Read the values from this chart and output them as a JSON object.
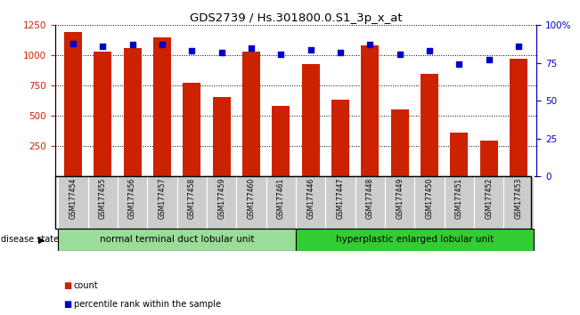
{
  "title": "GDS2739 / Hs.301800.0.S1_3p_x_at",
  "samples": [
    "GSM177454",
    "GSM177455",
    "GSM177456",
    "GSM177457",
    "GSM177458",
    "GSM177459",
    "GSM177460",
    "GSM177461",
    "GSM177446",
    "GSM177447",
    "GSM177448",
    "GSM177449",
    "GSM177450",
    "GSM177451",
    "GSM177452",
    "GSM177453"
  ],
  "counts": [
    1190,
    1035,
    1060,
    1150,
    775,
    660,
    1030,
    580,
    930,
    635,
    1080,
    550,
    850,
    365,
    295,
    975
  ],
  "percentiles": [
    88,
    86,
    87,
    87,
    83,
    82,
    85,
    81,
    84,
    82,
    87,
    81,
    83,
    74,
    77,
    86
  ],
  "group1_label": "normal terminal duct lobular unit",
  "group2_label": "hyperplastic enlarged lobular unit",
  "group1_count": 8,
  "group2_count": 8,
  "bar_color": "#cc2200",
  "dot_color": "#0000cc",
  "group1_bg": "#99dd99",
  "group2_bg": "#33cc33",
  "tick_bg": "#cccccc",
  "ylim_left": [
    0,
    1250
  ],
  "ylim_right": [
    0,
    100
  ],
  "yticks_left": [
    250,
    500,
    750,
    1000,
    1250
  ],
  "yticks_right": [
    0,
    25,
    50,
    75,
    100
  ],
  "ylabel_left_color": "#cc2200",
  "ylabel_right_color": "#0000cc",
  "disease_state_label": "disease state",
  "legend_count_label": "count",
  "legend_pct_label": "percentile rank within the sample",
  "bg_color": "#ffffff"
}
